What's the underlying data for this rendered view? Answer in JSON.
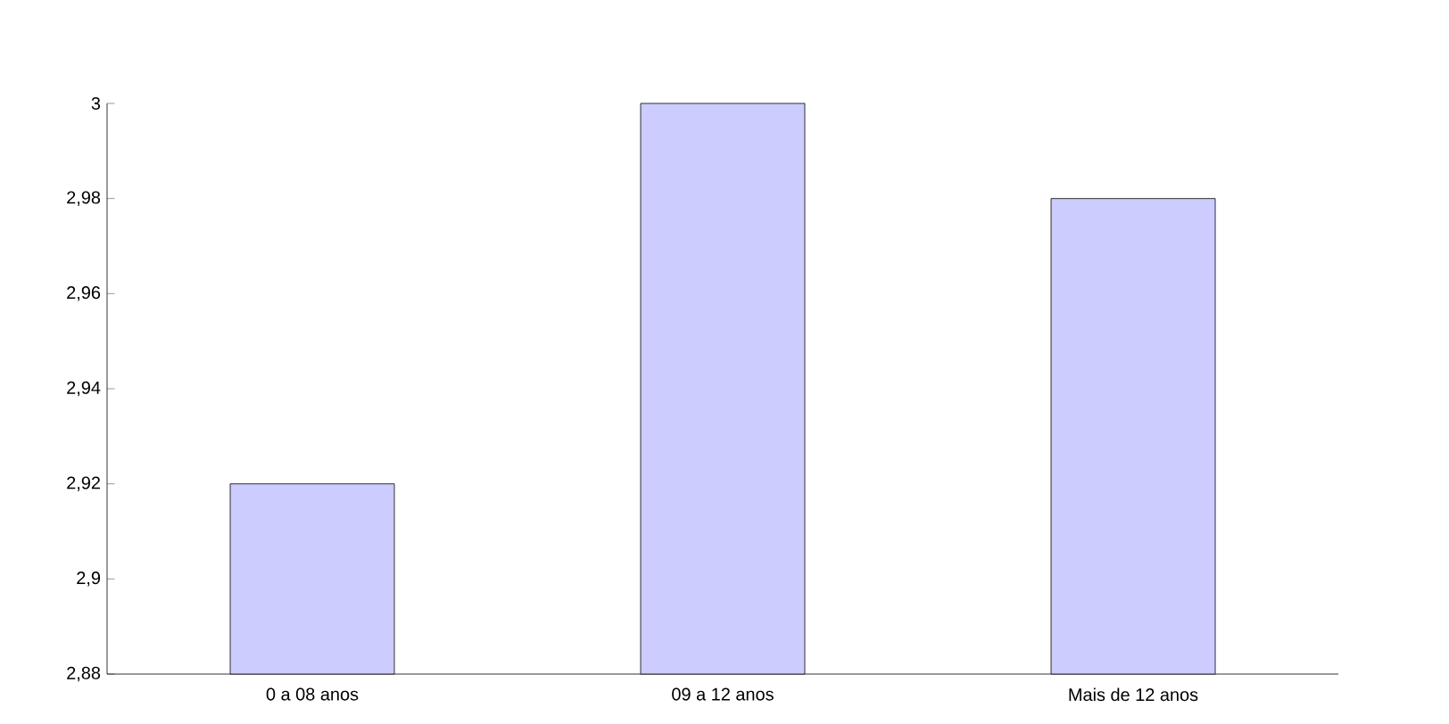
{
  "chart_data": {
    "type": "bar",
    "categories": [
      "0 a 08 anos",
      "09 a 12 anos",
      "Mais de 12 anos"
    ],
    "values": [
      2.92,
      3.0,
      2.98
    ],
    "color": "#ccccff",
    "ylim": [
      2.88,
      3.0
    ],
    "yticks": [
      {
        "value": 2.88,
        "label": "2,88"
      },
      {
        "value": 2.9,
        "label": "2,9"
      },
      {
        "value": 2.92,
        "label": "2,92"
      },
      {
        "value": 2.94,
        "label": "2,94"
      },
      {
        "value": 2.96,
        "label": "2,96"
      },
      {
        "value": 2.98,
        "label": "2,98"
      },
      {
        "value": 3.0,
        "label": "3"
      }
    ],
    "grid": false
  }
}
